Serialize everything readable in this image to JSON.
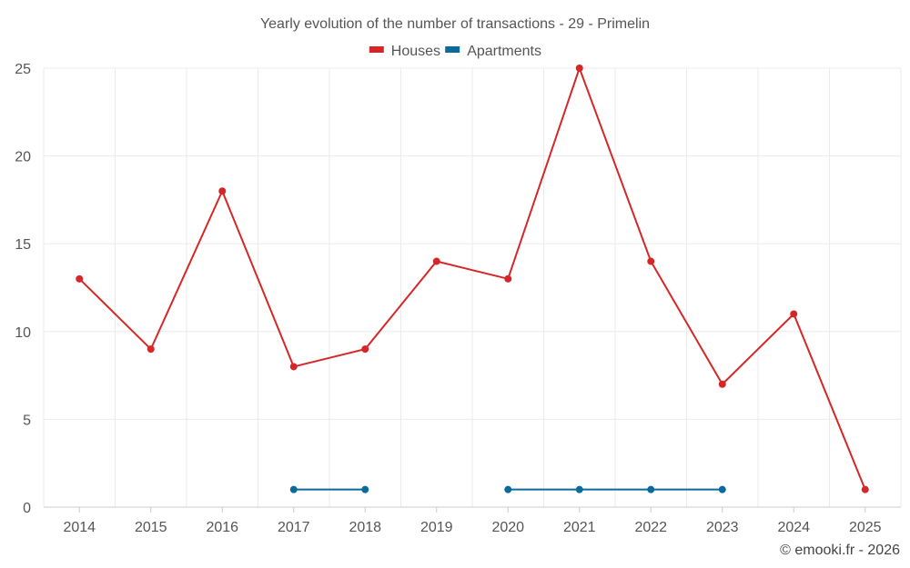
{
  "chart_data": {
    "type": "line",
    "title": "Yearly evolution of the number of transactions - 29 - Primelin",
    "categories": [
      "2014",
      "2015",
      "2016",
      "2017",
      "2018",
      "2019",
      "2020",
      "2021",
      "2022",
      "2023",
      "2024",
      "2025"
    ],
    "ylim": [
      0,
      25
    ],
    "yticks": [
      0,
      5,
      10,
      15,
      20,
      25
    ],
    "grid": true,
    "legend_position": "top-center",
    "series": [
      {
        "name": "Houses",
        "color": "#d62728",
        "values": [
          13,
          9,
          18,
          8,
          9,
          14,
          13,
          25,
          14,
          7,
          11,
          1
        ]
      },
      {
        "name": "Apartments",
        "color": "#0a6a9c",
        "values": [
          null,
          null,
          null,
          1,
          1,
          null,
          1,
          1,
          1,
          1,
          null,
          null
        ]
      }
    ]
  },
  "credit": "© emooki.fr - 2026"
}
